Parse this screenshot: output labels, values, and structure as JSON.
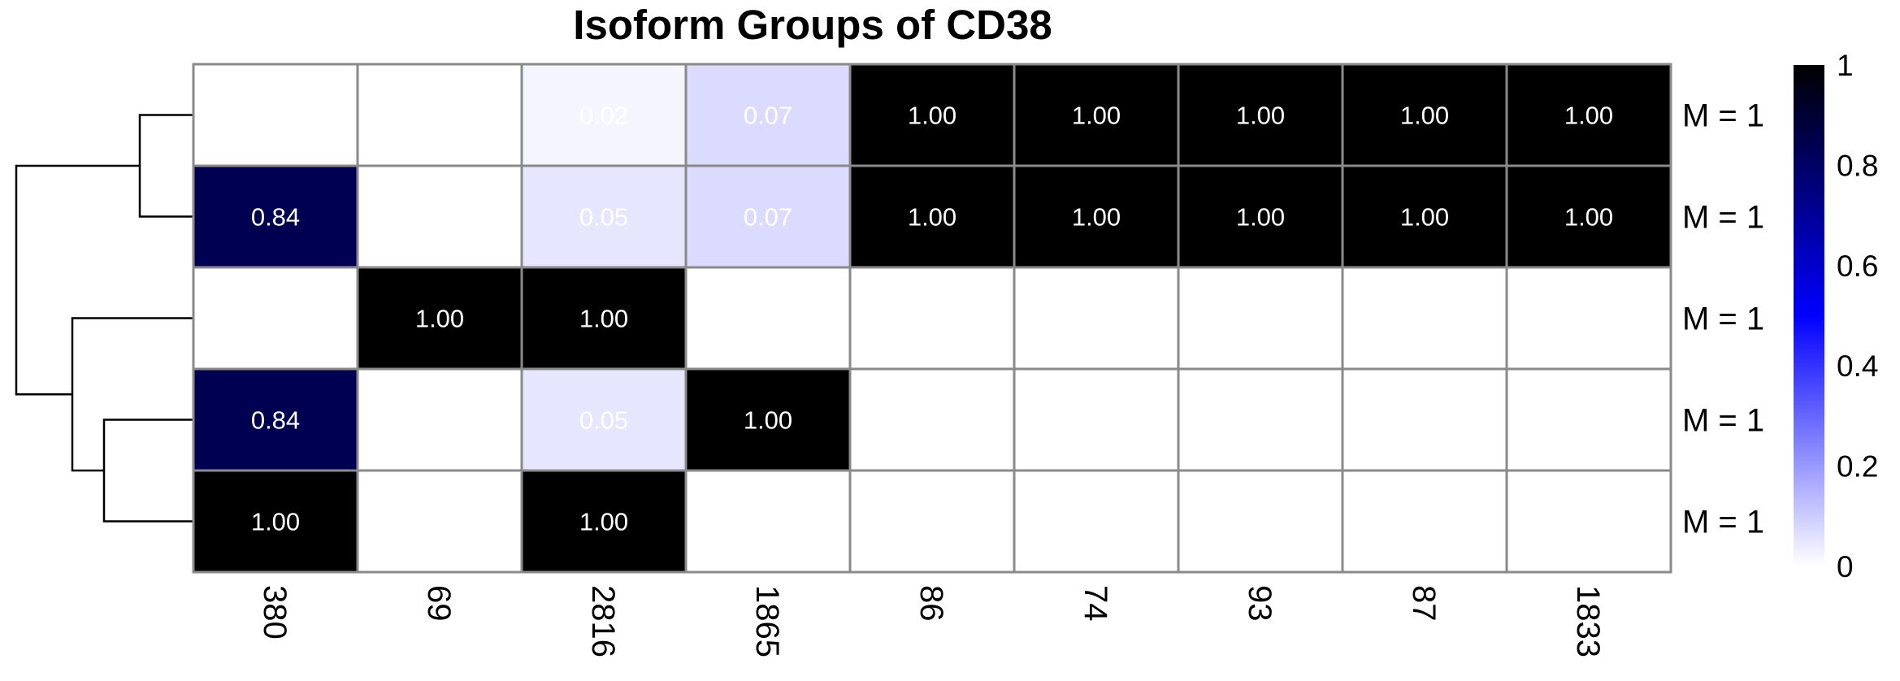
{
  "chart_data": {
    "type": "heatmap",
    "title": "Isoform Groups of CD38",
    "columns": [
      "380",
      "69",
      "2816",
      "1865",
      "86",
      "74",
      "93",
      "87",
      "1833"
    ],
    "row_labels": [
      "M = 1",
      "M = 1",
      "M = 1",
      "M = 1",
      "M = 1"
    ],
    "values": [
      [
        0,
        0,
        0.02,
        0.07,
        1,
        1,
        1,
        1,
        1
      ],
      [
        0.84,
        0,
        0.05,
        0.07,
        1,
        1,
        1,
        1,
        1
      ],
      [
        0,
        1,
        1,
        0,
        0,
        0,
        0,
        0,
        0
      ],
      [
        0.84,
        0,
        0.05,
        1,
        0,
        0,
        0,
        0,
        0
      ],
      [
        1,
        0,
        1,
        0,
        0,
        0,
        0,
        0,
        0
      ]
    ],
    "cell_labels": [
      [
        "",
        "",
        "0.02",
        "0.07",
        "1.00",
        "1.00",
        "1.00",
        "1.00",
        "1.00"
      ],
      [
        "0.84",
        "",
        "0.05",
        "0.07",
        "1.00",
        "1.00",
        "1.00",
        "1.00",
        "1.00"
      ],
      [
        "",
        "1.00",
        "1.00",
        "",
        "",
        "",
        "",
        "",
        ""
      ],
      [
        "0.84",
        "",
        "0.05",
        "1.00",
        "",
        "",
        "",
        "",
        ""
      ],
      [
        "1.00",
        "",
        "1.00",
        "",
        "",
        "",
        "",
        "",
        ""
      ]
    ],
    "colorbar": {
      "range": [
        0,
        1
      ],
      "ticks": [
        "0",
        "0.2",
        "0.4",
        "0.6",
        "0.8",
        "1"
      ],
      "colors": [
        "#ffffff",
        "#0000ff",
        "#000000"
      ]
    },
    "row_dendrogram": true,
    "legend_placement": "right"
  }
}
